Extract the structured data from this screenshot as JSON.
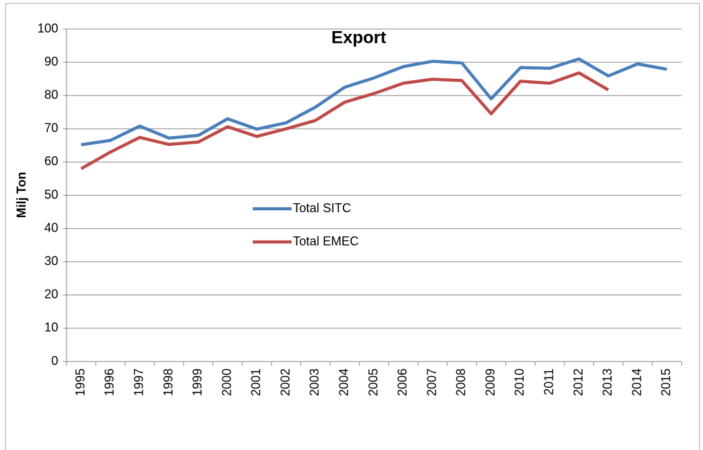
{
  "chart_data": {
    "type": "line",
    "title": "Export",
    "y_label": "Milj Ton",
    "categories": [
      "1995",
      "1996",
      "1997",
      "1998",
      "1999",
      "2000",
      "2001",
      "2002",
      "2003",
      "2004",
      "2005",
      "2006",
      "2007",
      "2008",
      "2009",
      "2010",
      "2011",
      "2012",
      "2013",
      "2014",
      "2015"
    ],
    "series": [
      {
        "name": "Total SITC",
        "color": "#4a7ebb",
        "values": [
          65.2,
          66.5,
          70.8,
          67.2,
          68.0,
          73.0,
          69.9,
          71.8,
          76.5,
          82.5,
          85.3,
          88.7,
          90.3,
          89.8,
          79.0,
          88.4,
          88.2,
          91.0,
          85.9,
          89.5,
          87.9
        ]
      },
      {
        "name": "Total EMEC",
        "color": "#be4b48",
        "values": [
          58.0,
          63.0,
          67.4,
          65.3,
          66.0,
          70.6,
          67.7,
          70.0,
          72.5,
          78.0,
          80.6,
          83.7,
          84.9,
          84.5,
          74.5,
          84.3,
          83.7,
          86.8,
          81.7,
          null,
          null
        ]
      }
    ],
    "ylim": [
      0,
      100
    ],
    "yticks": [
      0,
      10,
      20,
      30,
      40,
      50,
      60,
      70,
      80,
      90,
      100
    ],
    "grid": true
  }
}
